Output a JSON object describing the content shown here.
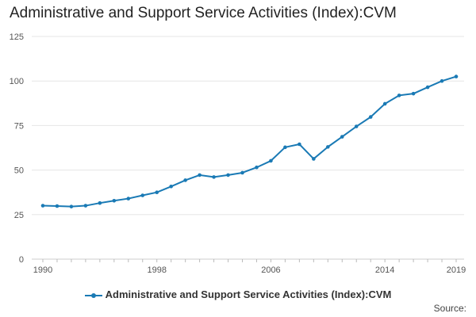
{
  "chart_data": {
    "type": "line",
    "title": "Administrative and Support Service Activities (Index):CVM",
    "xlabel": "",
    "ylabel": "",
    "x": [
      1990,
      1991,
      1992,
      1993,
      1994,
      1995,
      1996,
      1997,
      1998,
      1999,
      2000,
      2001,
      2002,
      2003,
      2004,
      2005,
      2006,
      2007,
      2008,
      2009,
      2010,
      2011,
      2012,
      2013,
      2014,
      2015,
      2016,
      2017,
      2018,
      2019
    ],
    "x_tick_labels": [
      "1990",
      "1998",
      "2006",
      "2014",
      "2019"
    ],
    "x_tick_values": [
      1990,
      1998,
      2006,
      2014,
      2019
    ],
    "xlim": [
      1990,
      2019
    ],
    "ylim": [
      0,
      125
    ],
    "y_ticks": [
      0,
      25,
      50,
      75,
      100,
      125
    ],
    "grid": true,
    "legend_position": "bottom",
    "series": [
      {
        "name": "Administrative and Support Service Activities (Index):CVM",
        "color": "#1a7ab5",
        "values": [
          30,
          29.8,
          29.5,
          30,
          31.5,
          32.8,
          34,
          35.8,
          37.5,
          40.8,
          44.3,
          47.2,
          46.1,
          47.2,
          48.5,
          51.5,
          55.2,
          62.8,
          64.5,
          56.3,
          63,
          68.7,
          74.5,
          79.8,
          87.2,
          91.9,
          92.9,
          96.5,
          100,
          102.5
        ]
      }
    ]
  },
  "legend": {
    "label": "Administrative and Support Service Activities (Index):CVM"
  },
  "source": {
    "label": "Source:"
  }
}
